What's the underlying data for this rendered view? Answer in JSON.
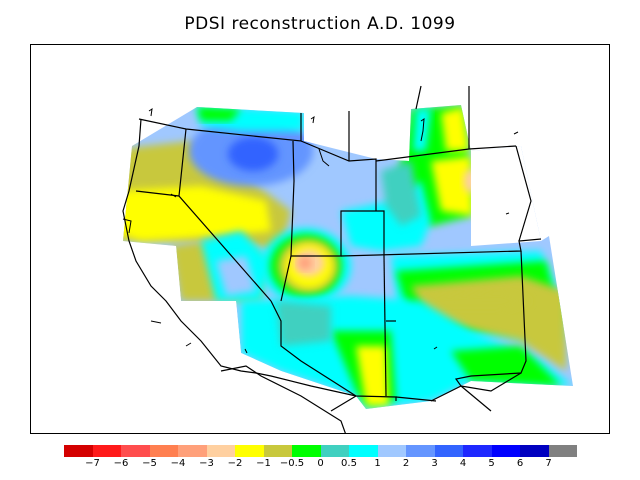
{
  "title": "PDSI reconstruction A.D. 1099",
  "legend": {
    "colors": [
      "#d40000",
      "#ff1a1a",
      "#ff4d4d",
      "#ff7f50",
      "#ffa07a",
      "#ffd0a0",
      "#ffff00",
      "#c8c83c",
      "#00ff00",
      "#40d0c0",
      "#00ffff",
      "#a0c8ff",
      "#6495ff",
      "#3264ff",
      "#1e28ff",
      "#0000ff",
      "#0000c0",
      "#808080"
    ],
    "labels": [
      "−7",
      "−6",
      "−5",
      "−4",
      "−3",
      "−2",
      "−1",
      "−0.5",
      "0",
      "0.5",
      "1",
      "2",
      "3",
      "4",
      "5",
      "6",
      "7"
    ]
  }
}
